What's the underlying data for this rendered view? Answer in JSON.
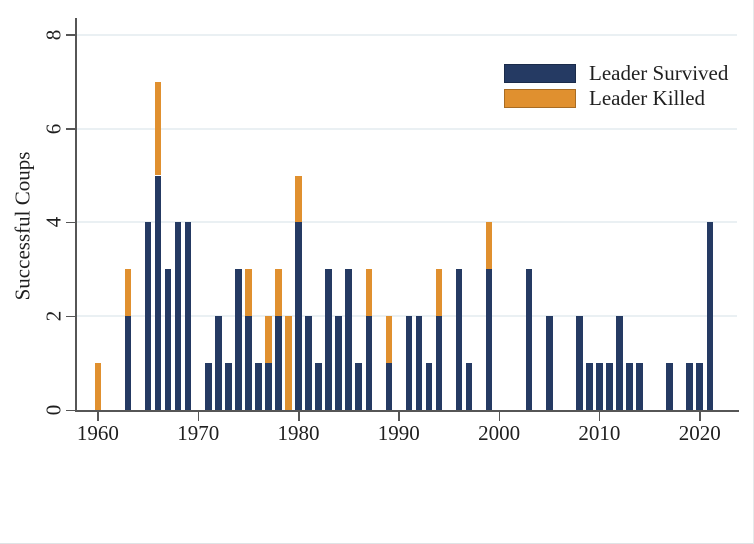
{
  "chart_data": {
    "type": "bar",
    "stacked": true,
    "title": "",
    "xlabel": "",
    "ylabel": "Successful Coups",
    "ylim": [
      0,
      8
    ],
    "yticks": [
      0,
      2,
      4,
      6,
      8
    ],
    "xticks": [
      1960,
      1970,
      1980,
      1990,
      2000,
      2010,
      2020
    ],
    "x_axis_span": [
      1957.7,
      2023.8
    ],
    "grid": "horizontal-light",
    "legend_position": "top-right",
    "colors": {
      "leader_survived": "#253a63",
      "leader_killed": "#e0902f",
      "gridline": "#eaf0f3",
      "axis": "#565656",
      "text": "#1f1f1f"
    },
    "series": [
      {
        "name": "Leader Survived",
        "key": "survived",
        "color": "#253a63"
      },
      {
        "name": "Leader Killed",
        "key": "killed",
        "color": "#e0902f"
      }
    ],
    "bars": [
      {
        "year": 1960,
        "survived": 0,
        "killed": 1
      },
      {
        "year": 1963,
        "survived": 2,
        "killed": 1
      },
      {
        "year": 1965,
        "survived": 4,
        "killed": 0
      },
      {
        "year": 1966,
        "survived": 5,
        "killed": 2
      },
      {
        "year": 1967,
        "survived": 3,
        "killed": 0
      },
      {
        "year": 1968,
        "survived": 4,
        "killed": 0
      },
      {
        "year": 1969,
        "survived": 4,
        "killed": 0
      },
      {
        "year": 1971,
        "survived": 1,
        "killed": 0
      },
      {
        "year": 1972,
        "survived": 2,
        "killed": 0
      },
      {
        "year": 1973,
        "survived": 1,
        "killed": 0
      },
      {
        "year": 1974,
        "survived": 3,
        "killed": 0
      },
      {
        "year": 1975,
        "survived": 2,
        "killed": 1
      },
      {
        "year": 1976,
        "survived": 1,
        "killed": 0
      },
      {
        "year": 1977,
        "survived": 1,
        "killed": 1
      },
      {
        "year": 1978,
        "survived": 2,
        "killed": 1
      },
      {
        "year": 1979,
        "survived": 0,
        "killed": 2
      },
      {
        "year": 1980,
        "survived": 4,
        "killed": 1
      },
      {
        "year": 1981,
        "survived": 2,
        "killed": 0
      },
      {
        "year": 1982,
        "survived": 1,
        "killed": 0
      },
      {
        "year": 1983,
        "survived": 3,
        "killed": 0
      },
      {
        "year": 1984,
        "survived": 2,
        "killed": 0
      },
      {
        "year": 1985,
        "survived": 3,
        "killed": 0
      },
      {
        "year": 1986,
        "survived": 1,
        "killed": 0
      },
      {
        "year": 1987,
        "survived": 2,
        "killed": 1
      },
      {
        "year": 1989,
        "survived": 1,
        "killed": 1
      },
      {
        "year": 1991,
        "survived": 2,
        "killed": 0
      },
      {
        "year": 1992,
        "survived": 2,
        "killed": 0
      },
      {
        "year": 1993,
        "survived": 1,
        "killed": 0
      },
      {
        "year": 1994,
        "survived": 2,
        "killed": 1
      },
      {
        "year": 1996,
        "survived": 3,
        "killed": 0
      },
      {
        "year": 1997,
        "survived": 1,
        "killed": 0
      },
      {
        "year": 1999,
        "survived": 3,
        "killed": 1
      },
      {
        "year": 2003,
        "survived": 3,
        "killed": 0
      },
      {
        "year": 2005,
        "survived": 2,
        "killed": 0
      },
      {
        "year": 2008,
        "survived": 2,
        "killed": 0
      },
      {
        "year": 2009,
        "survived": 1,
        "killed": 0
      },
      {
        "year": 2010,
        "survived": 1,
        "killed": 0
      },
      {
        "year": 2011,
        "survived": 1,
        "killed": 0
      },
      {
        "year": 2012,
        "survived": 2,
        "killed": 0
      },
      {
        "year": 2013,
        "survived": 1,
        "killed": 0
      },
      {
        "year": 2014,
        "survived": 1,
        "killed": 0
      },
      {
        "year": 2017,
        "survived": 1,
        "killed": 0
      },
      {
        "year": 2019,
        "survived": 1,
        "killed": 0
      },
      {
        "year": 2020,
        "survived": 1,
        "killed": 0
      },
      {
        "year": 2021,
        "survived": 4,
        "killed": 0
      }
    ]
  }
}
